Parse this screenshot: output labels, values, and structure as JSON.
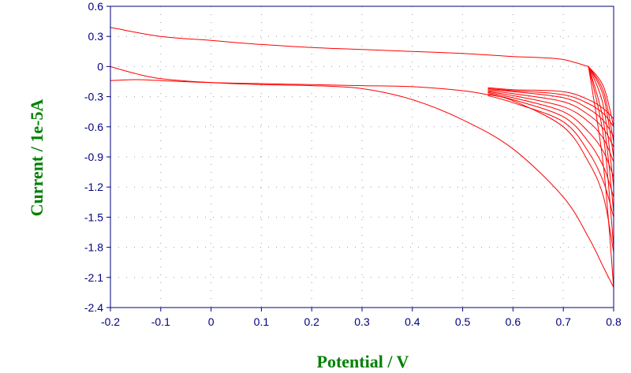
{
  "chart_data": {
    "type": "line",
    "title": "",
    "xlabel": "Potential / V",
    "ylabel": "Current / 1e-5A",
    "xlim": [
      -0.2,
      0.8
    ],
    "ylim": [
      -2.4,
      0.6
    ],
    "x_ticks": [
      "-0.2",
      "-0.1",
      "0",
      "0.1",
      "0.2",
      "0.3",
      "0.4",
      "0.5",
      "0.6",
      "0.7",
      "0.8"
    ],
    "y_ticks": [
      "0.6",
      "0.3",
      "0",
      "-0.3",
      "-0.6",
      "-0.9",
      "-1.2",
      "-1.5",
      "-1.8",
      "-2.1",
      "-2.4"
    ],
    "grid": true,
    "legend": "none",
    "colors": {
      "trace": "#ff0000",
      "axis": "#000080",
      "title": "#008000",
      "grid": "#9a9ab4"
    },
    "anodic_sweep": {
      "x": [
        -0.2,
        -0.15,
        -0.1,
        0.0,
        0.1,
        0.2,
        0.3,
        0.4,
        0.5,
        0.55
      ],
      "y": [
        -0.14,
        -0.13,
        -0.14,
        -0.16,
        -0.17,
        -0.18,
        -0.19,
        -0.2,
        -0.24,
        -0.28
      ]
    },
    "cathodic_sweep": {
      "x": [
        0.75,
        0.7,
        0.65,
        0.6,
        0.5,
        0.4,
        0.3,
        0.2,
        0.1,
        0.0,
        -0.1,
        -0.19,
        -0.2
      ],
      "y": [
        0.0,
        0.07,
        0.09,
        0.1,
        0.13,
        0.15,
        0.17,
        0.19,
        0.22,
        0.26,
        0.3,
        0.38,
        0.39
      ]
    },
    "series": [
      {
        "x": [
          -0.2,
          -0.15,
          -0.1,
          0.0,
          0.1,
          0.2,
          0.3,
          0.4,
          0.5,
          0.6,
          0.7,
          0.75,
          0.78,
          0.8
        ],
        "y": [
          0.0,
          -0.07,
          -0.12,
          -0.16,
          -0.18,
          -0.19,
          -0.22,
          -0.33,
          -0.53,
          -0.82,
          -1.3,
          -1.7,
          -2.0,
          -2.2
        ]
      },
      {
        "x": [
          0.55,
          0.6,
          0.7,
          0.75,
          0.78,
          0.8
        ],
        "y": [
          -0.28,
          -0.34,
          -0.6,
          -0.95,
          -1.3,
          -1.85
        ]
      },
      {
        "x": [
          0.55,
          0.6,
          0.7,
          0.75,
          0.78,
          0.8
        ],
        "y": [
          -0.29,
          -0.36,
          -0.55,
          -0.85,
          -1.15,
          -1.5
        ]
      },
      {
        "x": [
          0.55,
          0.6,
          0.7,
          0.75,
          0.78,
          0.8
        ],
        "y": [
          -0.27,
          -0.33,
          -0.5,
          -0.75,
          -1.0,
          -1.3
        ]
      },
      {
        "x": [
          0.55,
          0.6,
          0.7,
          0.75,
          0.78,
          0.8
        ],
        "y": [
          -0.26,
          -0.31,
          -0.45,
          -0.65,
          -0.85,
          -1.1
        ]
      },
      {
        "x": [
          0.55,
          0.6,
          0.7,
          0.75,
          0.78,
          0.8
        ],
        "y": [
          -0.25,
          -0.29,
          -0.4,
          -0.55,
          -0.72,
          -0.95
        ]
      },
      {
        "x": [
          0.55,
          0.6,
          0.7,
          0.75,
          0.78,
          0.8
        ],
        "y": [
          -0.24,
          -0.27,
          -0.35,
          -0.48,
          -0.62,
          -0.8
        ]
      },
      {
        "x": [
          0.55,
          0.6,
          0.7,
          0.75,
          0.78,
          0.8
        ],
        "y": [
          -0.23,
          -0.25,
          -0.31,
          -0.42,
          -0.54,
          -0.7
        ]
      },
      {
        "x": [
          0.55,
          0.6,
          0.7,
          0.75,
          0.78,
          0.8
        ],
        "y": [
          -0.22,
          -0.24,
          -0.28,
          -0.37,
          -0.47,
          -0.6
        ]
      },
      {
        "x": [
          0.55,
          0.6,
          0.7,
          0.75,
          0.78,
          0.8
        ],
        "y": [
          -0.21,
          -0.23,
          -0.25,
          -0.33,
          -0.42,
          -0.52
        ]
      },
      {
        "x": [
          0.8,
          0.78,
          0.75
        ],
        "y": [
          -2.2,
          -1.0,
          0.0
        ]
      },
      {
        "x": [
          0.8,
          0.78,
          0.75
        ],
        "y": [
          -1.8,
          -0.7,
          0.0
        ]
      },
      {
        "x": [
          0.8,
          0.78,
          0.75
        ],
        "y": [
          -1.45,
          -0.55,
          0.0
        ]
      },
      {
        "x": [
          0.8,
          0.78,
          0.75
        ],
        "y": [
          -1.2,
          -0.4,
          0.0
        ]
      },
      {
        "x": [
          0.8,
          0.78,
          0.75
        ],
        "y": [
          -0.9,
          -0.3,
          0.0
        ]
      },
      {
        "x": [
          0.8,
          0.78,
          0.75
        ],
        "y": [
          -0.75,
          -0.25,
          0.0
        ]
      },
      {
        "x": [
          0.8,
          0.78,
          0.75
        ],
        "y": [
          -0.6,
          -0.2,
          0.0
        ]
      }
    ]
  }
}
